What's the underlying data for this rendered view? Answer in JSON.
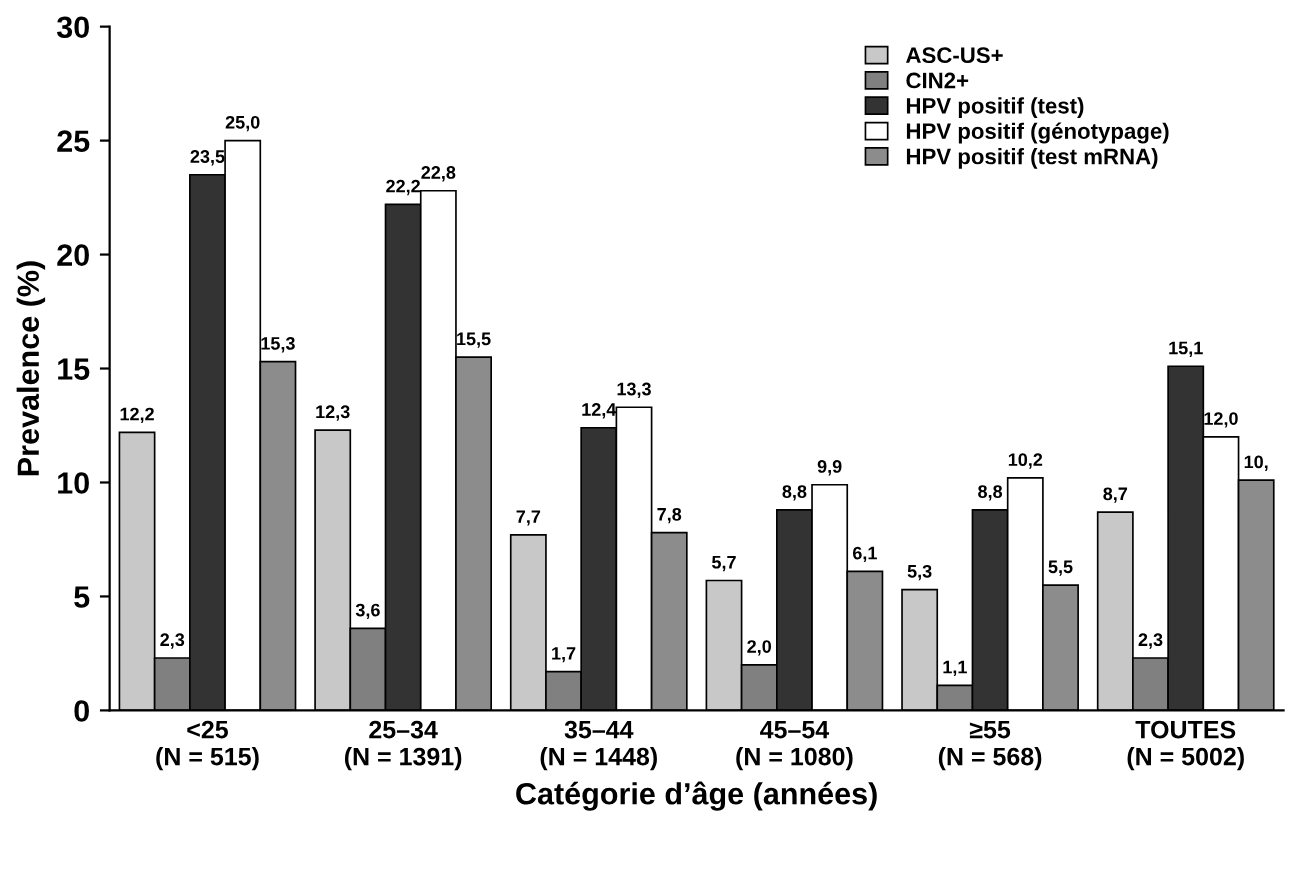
{
  "chart_data": {
    "type": "bar",
    "xlabel": "Catégorie d’âge (années)",
    "ylabel": "Prevalence (%)",
    "categories": [
      "<25\n(N = 515)",
      "25–34\n(N = 1391)",
      "35–44\n(N = 1448)",
      "45–54\n(N = 1080)",
      "≥55\n(N = 568)",
      "TOUTES\n(N = 5002)"
    ],
    "series": [
      {
        "name": "ASC-US+",
        "color": "#c8c8c8",
        "values": [
          12.2,
          12.3,
          7.7,
          5.7,
          5.3,
          8.7
        ],
        "value_labels": [
          "12,2",
          "12,3",
          "7,7",
          "5,7",
          "5,3",
          "8,7"
        ]
      },
      {
        "name": "CIN2+",
        "color": "#808080",
        "values": [
          2.3,
          3.6,
          1.7,
          2.0,
          1.1,
          2.3
        ],
        "value_labels": [
          "2,3",
          "3,6",
          "1,7",
          "2,0",
          "1,1",
          "2,3"
        ]
      },
      {
        "name": "HPV positif (test)",
        "color": "#333333",
        "values": [
          23.5,
          22.2,
          12.4,
          8.8,
          8.8,
          15.1
        ],
        "value_labels": [
          "23,5",
          "22,2",
          "12,4",
          "8,8",
          "8,8",
          "15,1"
        ]
      },
      {
        "name": "HPV positif (génotypage)",
        "color": "#ffffff",
        "values": [
          25.0,
          22.8,
          13.3,
          9.9,
          10.2,
          12.0
        ],
        "value_labels": [
          "25,0",
          "22,8",
          "13,3",
          "9,9",
          "10,2",
          "12,0"
        ]
      },
      {
        "name": "HPV positif (test mRNA)",
        "color": "#8c8c8c",
        "values": [
          15.3,
          15.5,
          7.8,
          6.1,
          5.5,
          10.1
        ],
        "value_labels": [
          "15,3",
          "15,5",
          "7,8",
          "6,1",
          "5,5",
          "10,"
        ]
      }
    ],
    "ylim": [
      0,
      30
    ],
    "yticks": [
      0,
      5,
      10,
      15,
      20,
      25,
      30
    ],
    "grid": false,
    "legend": "top right"
  }
}
